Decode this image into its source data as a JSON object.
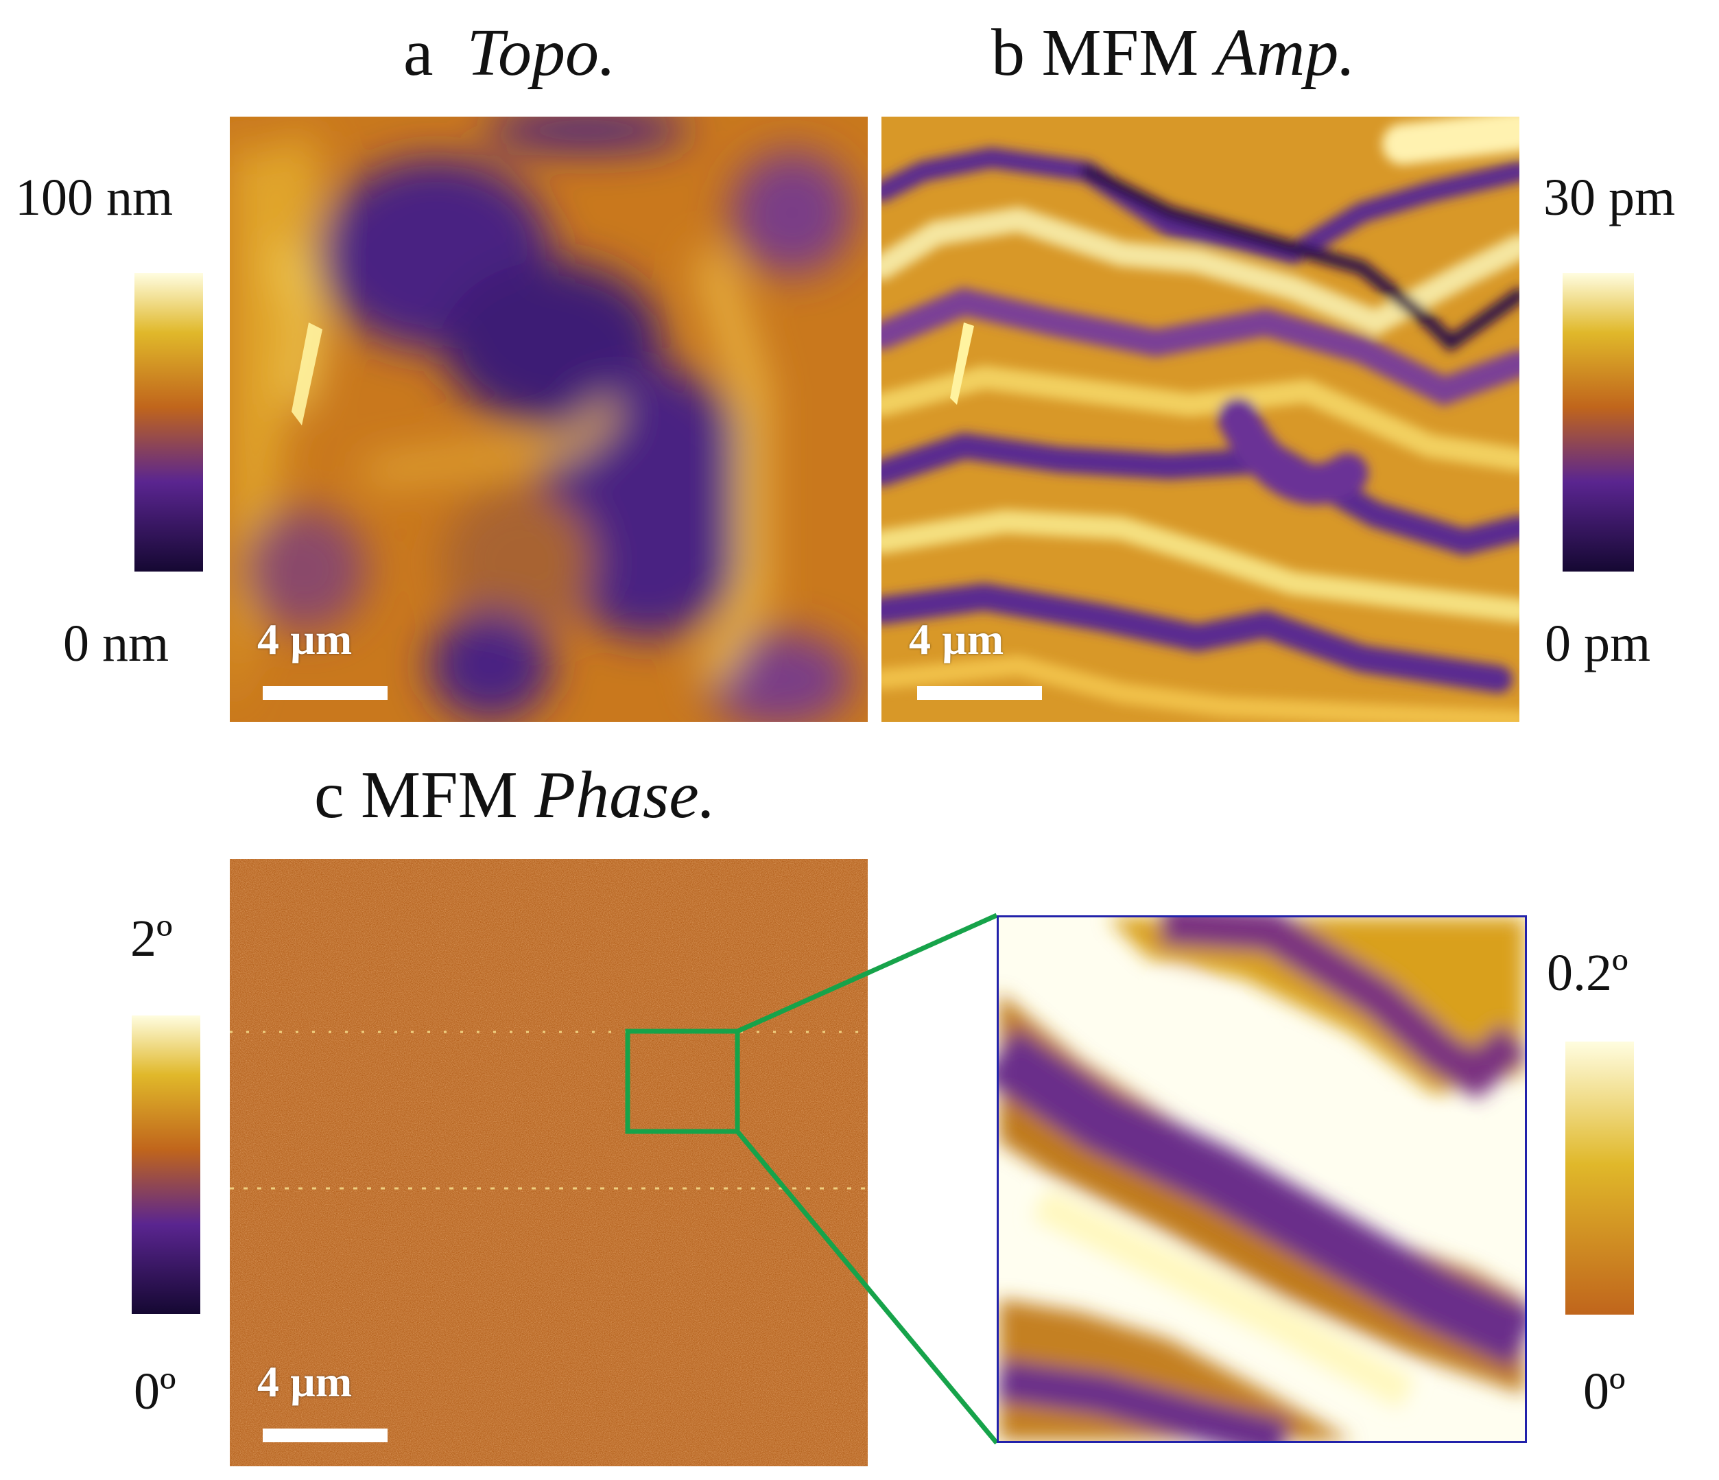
{
  "panels": {
    "a": {
      "letter": "a",
      "title": "Topo.",
      "scale_bar": "4 µm",
      "colorbar_max": "100 nm",
      "colorbar_min": "0 nm"
    },
    "b": {
      "letter": "b",
      "prefix": "MFM",
      "title": "Amp.",
      "scale_bar": "4 µm",
      "colorbar_max": "30 pm",
      "colorbar_min": "0 pm"
    },
    "c": {
      "letter": "c",
      "prefix": "MFM",
      "title": "Phase.",
      "scale_bar": "4 µm",
      "colorbar_max": "2º",
      "colorbar_min": "0º"
    },
    "inset": {
      "colorbar_max": "0.2º",
      "colorbar_min": "0º"
    }
  },
  "colors": {
    "inferno_dark": "#1a0a3a",
    "inferno_purple": "#5a2a8a",
    "inferno_orange": "#d0801f",
    "inferno_yellow": "#f2e07a",
    "inset_border": "#2222aa",
    "zoom_box": "#16a34a"
  }
}
